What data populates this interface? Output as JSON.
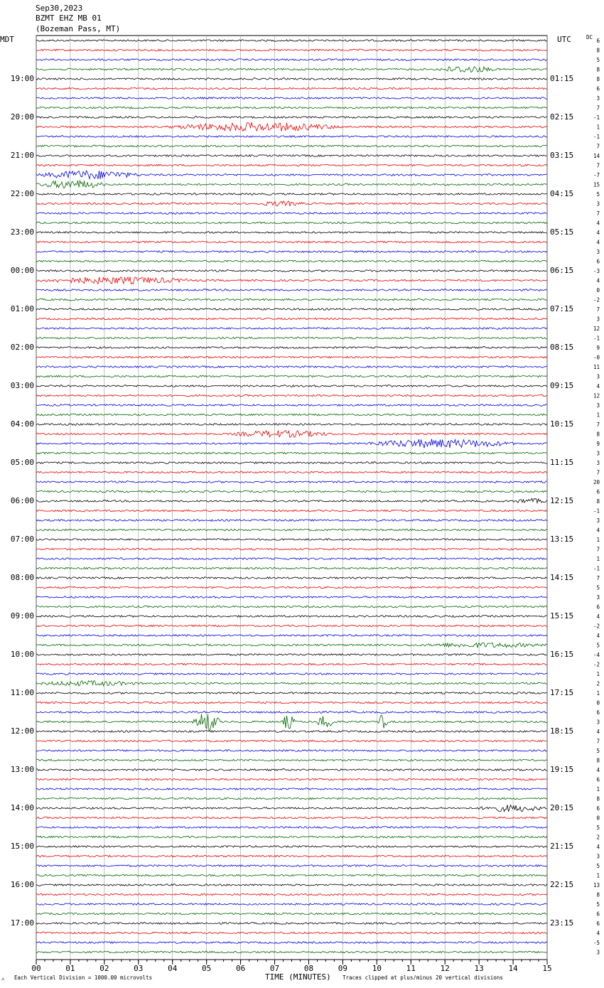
{
  "header": {
    "date": "Sep30,2023",
    "station": "BZMT EHZ MB 01",
    "location": "(Bozeman Pass, MT)",
    "left_zone": "MDT",
    "right_zone": "UTC",
    "dc_label": "DC"
  },
  "left_labels": [
    "19:00",
    "20:00",
    "21:00",
    "22:00",
    "23:00",
    "00:00",
    "01:00",
    "02:00",
    "03:00",
    "04:00",
    "05:00",
    "06:00",
    "07:00",
    "08:00",
    "09:00",
    "10:00",
    "11:00",
    "12:00",
    "13:00",
    "14:00",
    "15:00",
    "16:00",
    "17:00"
  ],
  "right_labels": [
    "01:15",
    "02:15",
    "03:15",
    "04:15",
    "05:15",
    "06:15",
    "07:15",
    "08:15",
    "09:15",
    "10:15",
    "11:15",
    "12:15",
    "13:15",
    "14:15",
    "15:15",
    "16:15",
    "17:15",
    "18:15",
    "19:15",
    "20:15",
    "21:15",
    "22:15",
    "23:15"
  ],
  "dc_offsets": [
    "6",
    "8",
    "5",
    "8",
    "8",
    "6",
    "3",
    "7",
    "-1",
    "1",
    "-1",
    "7",
    "14",
    "7",
    "-7",
    "15",
    "5",
    "3",
    "7",
    "4",
    "4",
    "4",
    "3",
    "6",
    "-3",
    "4",
    "0",
    "-2",
    "7",
    "3",
    "12",
    "-1",
    "9",
    "-0",
    "11",
    "3",
    "4",
    "12",
    "3",
    "1",
    "7",
    "8",
    "9",
    "3",
    "3",
    "7",
    "20",
    "6",
    "8",
    "-1",
    "3",
    "4",
    "1",
    "7",
    "1",
    "-1",
    "7",
    "5",
    "3",
    "6",
    "4",
    "-2",
    "4",
    "5",
    "-4",
    "-2",
    "1",
    "2",
    "1",
    "0",
    "6",
    "3",
    "4",
    "7",
    "5",
    "8",
    "4",
    "6",
    "1",
    "8",
    "6",
    "0",
    "5",
    "2",
    "4",
    "3",
    "5",
    "1",
    "13",
    "8",
    "5",
    "6",
    "6",
    "4",
    "-5",
    "3"
  ],
  "x_axis": {
    "ticks": [
      "00",
      "01",
      "02",
      "03",
      "04",
      "05",
      "06",
      "07",
      "08",
      "09",
      "10",
      "11",
      "12",
      "13",
      "14",
      "15"
    ],
    "title": "TIME (MINUTES)"
  },
  "footer": {
    "scale": "Each Vertical Division = 1000.00 microvolts",
    "clip": "Traces clipped at plus/minus 20 vertical divisions"
  }
}
